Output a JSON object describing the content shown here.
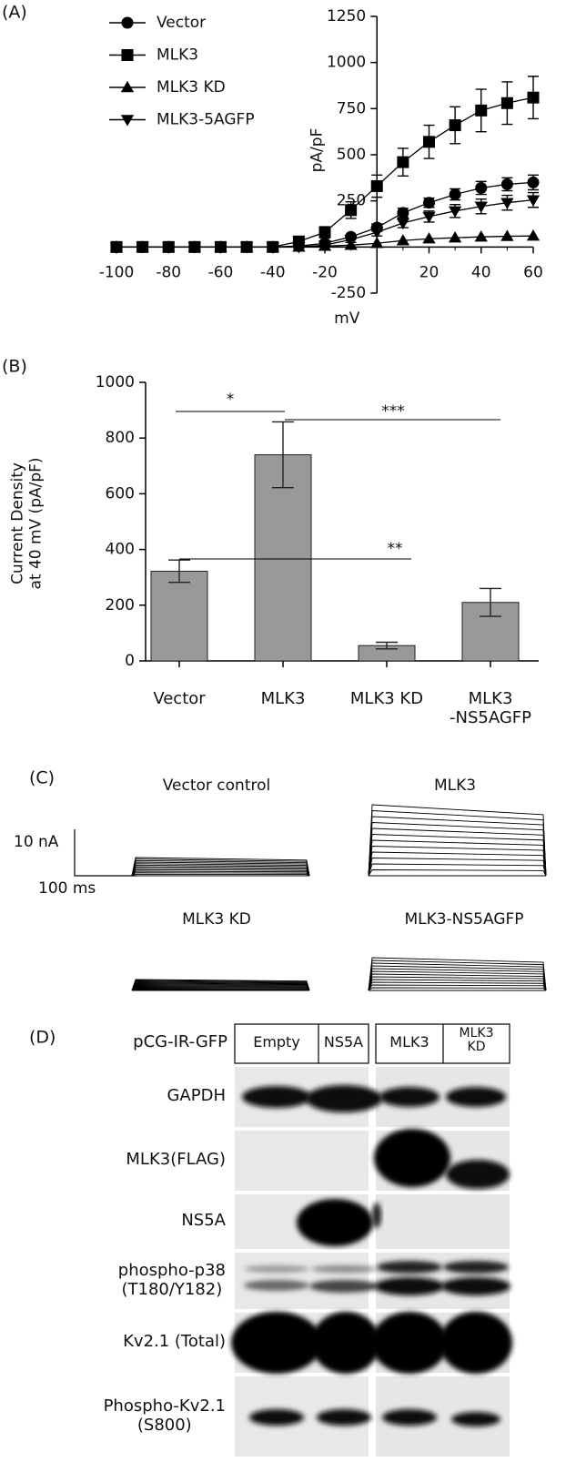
{
  "chart_data": [
    {
      "type": "line",
      "panel_label": "(A)",
      "x_label": "mV",
      "y_label": "pA/pF",
      "x": [
        -100,
        -90,
        -80,
        -70,
        -60,
        -50,
        -40,
        -30,
        -20,
        -10,
        0,
        10,
        20,
        30,
        40,
        50,
        60
      ],
      "xlim": [
        -100,
        60
      ],
      "xticks": [
        -100,
        -80,
        -60,
        -40,
        -20,
        20,
        40,
        60
      ],
      "ylim": [
        -250,
        1250
      ],
      "yticks": [
        -250,
        250,
        500,
        750,
        1000,
        1250
      ],
      "series": [
        {
          "name": "Vector",
          "color": "#000000",
          "marker": "circle",
          "values": [
            0,
            0,
            0,
            0,
            0,
            0,
            0,
            5,
            20,
            55,
            105,
            185,
            240,
            285,
            320,
            340,
            350
          ],
          "errors": [
            null,
            null,
            null,
            null,
            null,
            null,
            null,
            null,
            null,
            10,
            20,
            25,
            25,
            30,
            35,
            35,
            40
          ]
        },
        {
          "name": "MLK3",
          "color": "#000000",
          "marker": "square",
          "values": [
            0,
            0,
            0,
            0,
            0,
            0,
            0,
            30,
            80,
            200,
            330,
            460,
            570,
            660,
            740,
            780,
            810
          ],
          "errors": [
            null,
            null,
            null,
            null,
            null,
            null,
            null,
            15,
            30,
            45,
            60,
            75,
            90,
            100,
            115,
            115,
            115
          ]
        },
        {
          "name": "MLK3 KD",
          "color": "#000000",
          "marker": "triangle-up",
          "values": [
            0,
            0,
            0,
            0,
            0,
            0,
            0,
            0,
            5,
            10,
            20,
            35,
            45,
            50,
            55,
            58,
            60
          ]
        },
        {
          "name": "MLK3-5AGFP",
          "color": "#000000",
          "marker": "triangle-down",
          "values": [
            0,
            0,
            0,
            0,
            0,
            0,
            0,
            0,
            10,
            40,
            80,
            130,
            165,
            195,
            220,
            240,
            255
          ],
          "errors": [
            null,
            null,
            null,
            null,
            null,
            null,
            null,
            null,
            null,
            15,
            20,
            25,
            30,
            35,
            40,
            40,
            40
          ]
        }
      ]
    },
    {
      "type": "bar",
      "panel_label": "(B)",
      "y_label": "Current Density\nat 40 mV (pA/pF)",
      "categories": [
        "Vector",
        "MLK3",
        "MLK3 KD",
        "MLK3\n-NS5AGFP"
      ],
      "values": [
        322,
        740,
        55,
        210
      ],
      "errors": [
        40,
        118,
        12,
        50
      ],
      "color": "#999999",
      "ylim": [
        0,
        1000
      ],
      "yticks": [
        0,
        200,
        400,
        600,
        800,
        1000
      ],
      "annotations": [
        "*",
        "***",
        "**"
      ]
    }
  ],
  "panel_c": {
    "label": "(C)",
    "scale_current": "10 nA",
    "scale_time": "100 ms",
    "traces": [
      "Vector control",
      "MLK3",
      "MLK3 KD",
      "MLK3-NS5AGFP"
    ]
  },
  "panel_d": {
    "label": "(D)",
    "header_label": "pCG-IR-GFP",
    "columns": [
      "Empty",
      "NS5A",
      "MLK3",
      "MLK3\nKD"
    ],
    "rows": [
      "GAPDH",
      "MLK3(FLAG)",
      "NS5A",
      "phospho-p38\n(T180/Y182)",
      "Kv2.1 (Total)",
      "Phospho-Kv2.1\n(S800)"
    ]
  }
}
